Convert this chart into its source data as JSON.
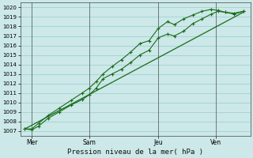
{
  "xlabel": "Pression niveau de la mer( hPa )",
  "ylim": [
    1006.5,
    1020.5
  ],
  "xlim": [
    0,
    100
  ],
  "yticks": [
    1007,
    1008,
    1009,
    1010,
    1011,
    1012,
    1013,
    1014,
    1015,
    1016,
    1017,
    1018,
    1019,
    1020
  ],
  "xtick_positions": [
    5,
    30,
    60,
    85
  ],
  "xtick_labels": [
    "Mer",
    "Sam",
    "Jeu",
    "Ven"
  ],
  "bg_color": "#cce8e8",
  "grid_color": "#99cccc",
  "line_color": "#1a6b1a",
  "series1_x": [
    2,
    5,
    8,
    12,
    17,
    22,
    27,
    30,
    33,
    36,
    40,
    44,
    48,
    52,
    56,
    60,
    64,
    67,
    71,
    75,
    79,
    83,
    86,
    89,
    93,
    97
  ],
  "series1_y": [
    1007.2,
    1007.1,
    1007.5,
    1008.3,
    1009.0,
    1009.7,
    1010.3,
    1010.8,
    1011.5,
    1012.5,
    1013.0,
    1013.5,
    1014.2,
    1015.0,
    1015.5,
    1016.8,
    1017.2,
    1017.0,
    1017.5,
    1018.3,
    1018.8,
    1019.3,
    1019.6,
    1019.5,
    1019.4,
    1019.6
  ],
  "series2_x": [
    2,
    5,
    8,
    12,
    17,
    22,
    27,
    30,
    33,
    36,
    40,
    44,
    48,
    52,
    56,
    60,
    64,
    67,
    71,
    75,
    79,
    83,
    86,
    89,
    93,
    97
  ],
  "series2_y": [
    1007.2,
    1007.2,
    1007.8,
    1008.6,
    1009.4,
    1010.2,
    1011.0,
    1011.5,
    1012.2,
    1013.0,
    1013.8,
    1014.5,
    1015.3,
    1016.2,
    1016.5,
    1017.8,
    1018.5,
    1018.2,
    1018.8,
    1019.2,
    1019.6,
    1019.8,
    1019.7,
    1019.5,
    1019.3,
    1019.6
  ],
  "trend_x": [
    2,
    97
  ],
  "trend_y": [
    1007.2,
    1019.5
  ],
  "vline_positions": [
    5,
    30,
    60,
    85
  ]
}
